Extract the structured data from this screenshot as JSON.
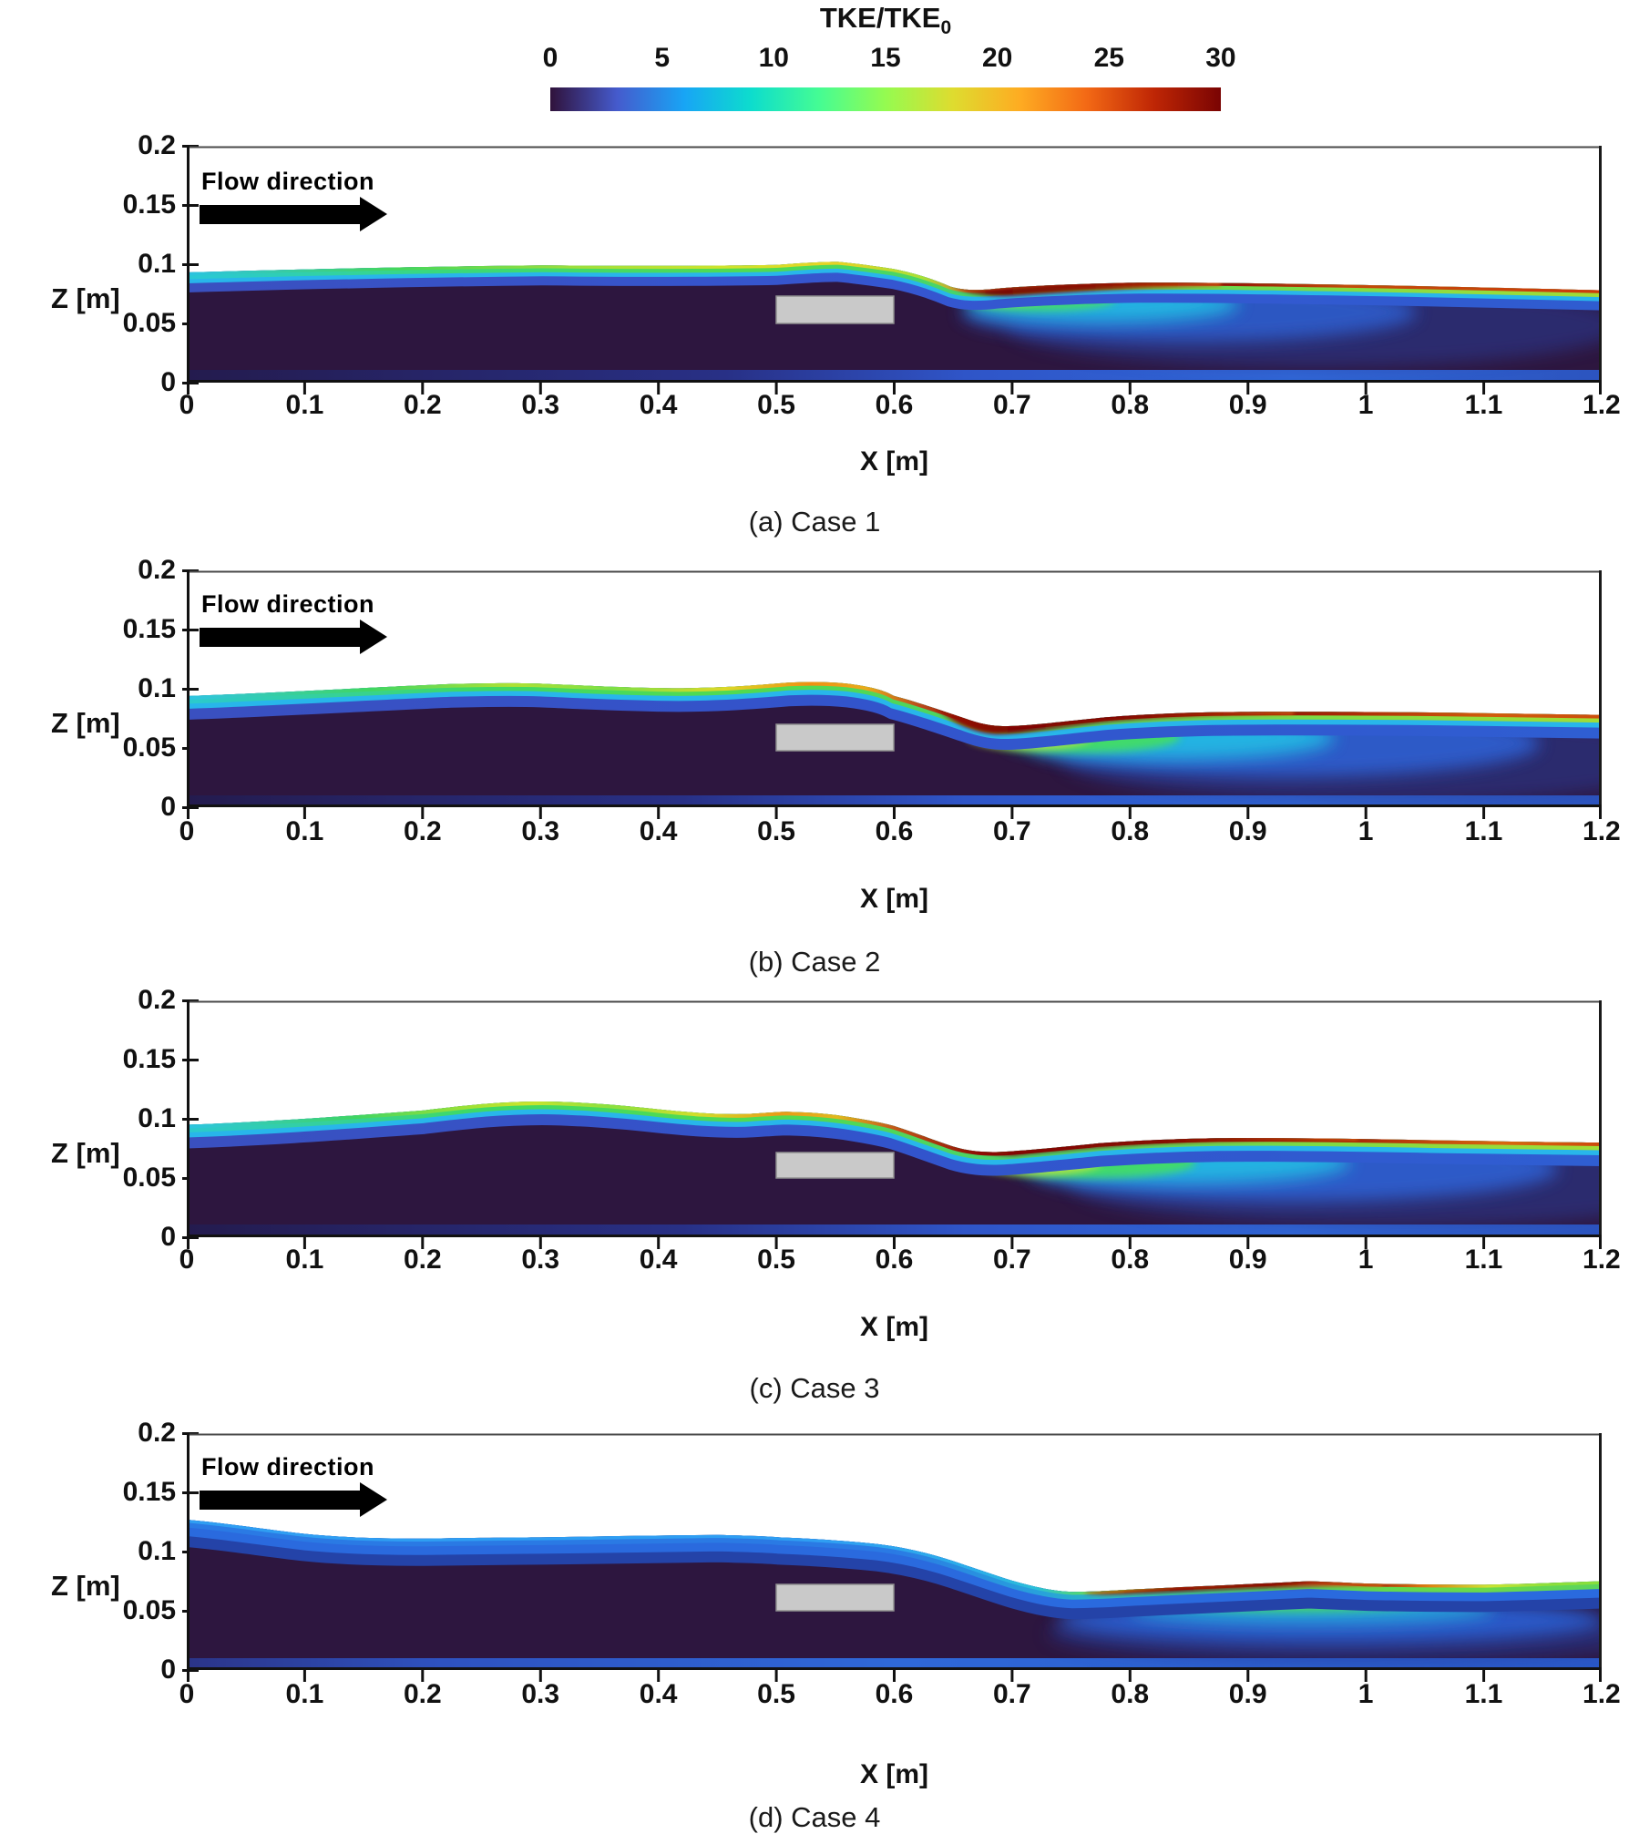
{
  "colorbar": {
    "title": "TKE/TKE",
    "title_sub": "0",
    "range": [
      0,
      30
    ],
    "ticks": [
      "0",
      "5",
      "10",
      "15",
      "20",
      "25",
      "30"
    ],
    "colormap_stops": [
      {
        "value": 0,
        "color": "#30123b"
      },
      {
        "value": 3,
        "color": "#455bcd"
      },
      {
        "value": 6,
        "color": "#18a5f5"
      },
      {
        "value": 9,
        "color": "#0dddcd"
      },
      {
        "value": 12,
        "color": "#44fc94"
      },
      {
        "value": 15,
        "color": "#95fb50"
      },
      {
        "value": 18,
        "color": "#dedc2f"
      },
      {
        "value": 21,
        "color": "#feac22"
      },
      {
        "value": 24,
        "color": "#f36915"
      },
      {
        "value": 27,
        "color": "#bf2605"
      },
      {
        "value": 30,
        "color": "#7a0403"
      }
    ]
  },
  "axes": {
    "xlabel": "X [m]",
    "zlabel": "Z [m]",
    "xticks": [
      "0",
      "0.1",
      "0.2",
      "0.3",
      "0.4",
      "0.5",
      "0.6",
      "0.7",
      "0.8",
      "0.9",
      "1",
      "1.1",
      "1.2"
    ],
    "zticks": [
      "0.2",
      "0.15",
      "0.1",
      "0.05",
      "0"
    ],
    "xlim": [
      0,
      1.2
    ],
    "zlim": [
      0,
      0.2
    ]
  },
  "panels": [
    {
      "caption": "(a) Case 1",
      "flow_label": "Flow direction",
      "has_flow_arrow": true
    },
    {
      "caption": "(b) Case 2",
      "flow_label": "Flow direction",
      "has_flow_arrow": true
    },
    {
      "caption": "(c) Case 3",
      "has_flow_arrow": false
    },
    {
      "caption": "(d) Case 4",
      "flow_label": "Flow direction",
      "has_flow_arrow": true
    }
  ],
  "obstacle_color": "#c9c9c9",
  "water_body_color": "#2d163f",
  "chart_data": [
    {
      "type": "heatmap",
      "panel": "a",
      "title": "(a) Case 1",
      "xlabel": "X [m]",
      "ylabel": "Z [m]",
      "xlim": [
        0,
        1.2
      ],
      "ylim": [
        0,
        0.2
      ],
      "colorbar_label": "TKE/TKE0",
      "colorbar_range": [
        0,
        30
      ],
      "obstacle": {
        "x": [
          0.5,
          0.6
        ],
        "z": [
          0.05,
          0.073
        ]
      },
      "flow_direction_label": true,
      "free_surface": {
        "x": [
          0,
          0.1,
          0.2,
          0.3,
          0.4,
          0.5,
          0.6,
          0.7,
          0.8,
          0.9,
          1.0,
          1.1,
          1.2
        ],
        "z": [
          0.093,
          0.095,
          0.098,
          0.099,
          0.098,
          0.1,
          0.096,
          0.082,
          0.085,
          0.083,
          0.082,
          0.08,
          0.078
        ]
      },
      "surface_dip": {
        "x": 0.66,
        "z": 0.078
      },
      "max_tke_surface_band_x": [
        0.65,
        0.87
      ]
    },
    {
      "type": "heatmap",
      "panel": "b",
      "title": "(b) Case 2",
      "xlabel": "X [m]",
      "ylabel": "Z [m]",
      "xlim": [
        0,
        1.2
      ],
      "ylim": [
        0,
        0.2
      ],
      "colorbar_label": "TKE/TKE0",
      "colorbar_range": [
        0,
        30
      ],
      "obstacle": {
        "x": [
          0.5,
          0.6
        ],
        "z": [
          0.048,
          0.07
        ]
      },
      "flow_direction_label": true,
      "free_surface": {
        "x": [
          0,
          0.1,
          0.2,
          0.3,
          0.4,
          0.5,
          0.6,
          0.7,
          0.8,
          0.9,
          1.0,
          1.1,
          1.2
        ],
        "z": [
          0.094,
          0.097,
          0.102,
          0.104,
          0.1,
          0.105,
          0.094,
          0.069,
          0.077,
          0.081,
          0.081,
          0.08,
          0.078
        ]
      },
      "surface_dip": {
        "x": 0.68,
        "z": 0.068
      },
      "max_tke_surface_band_x": [
        0.63,
        0.93
      ]
    },
    {
      "type": "heatmap",
      "panel": "c",
      "title": "(c) Case 3",
      "xlabel": "X [m]",
      "ylabel": "Z [m]",
      "xlim": [
        0,
        1.2
      ],
      "ylim": [
        0,
        0.2
      ],
      "colorbar_label": "TKE/TKE0",
      "colorbar_range": [
        0,
        30
      ],
      "obstacle": {
        "x": [
          0.5,
          0.6
        ],
        "z": [
          0.05,
          0.072
        ]
      },
      "flow_direction_label": false,
      "free_surface": {
        "x": [
          0,
          0.1,
          0.2,
          0.3,
          0.4,
          0.5,
          0.6,
          0.7,
          0.8,
          0.9,
          1.0,
          1.1,
          1.2
        ],
        "z": [
          0.095,
          0.098,
          0.107,
          0.114,
          0.108,
          0.106,
          0.094,
          0.073,
          0.082,
          0.084,
          0.082,
          0.081,
          0.08
        ]
      },
      "surface_dip": {
        "x": 0.68,
        "z": 0.072
      },
      "max_tke_surface_band_x": [
        0.64,
        0.98
      ]
    },
    {
      "type": "heatmap",
      "panel": "d",
      "title": "(d) Case 4",
      "xlabel": "X [m]",
      "ylabel": "Z [m]",
      "xlim": [
        0,
        1.2
      ],
      "ylim": [
        0,
        0.2
      ],
      "colorbar_label": "TKE/TKE0",
      "colorbar_range": [
        0,
        30
      ],
      "obstacle": {
        "x": [
          0.5,
          0.6
        ],
        "z": [
          0.05,
          0.072
        ]
      },
      "flow_direction_label": true,
      "free_surface": {
        "x": [
          0,
          0.1,
          0.2,
          0.3,
          0.4,
          0.5,
          0.6,
          0.7,
          0.8,
          0.9,
          1.0,
          1.1,
          1.2
        ],
        "z": [
          0.127,
          0.115,
          0.111,
          0.112,
          0.113,
          0.112,
          0.105,
          0.075,
          0.068,
          0.072,
          0.073,
          0.072,
          0.075
        ]
      },
      "surface_dip": {
        "x": 0.75,
        "z": 0.066
      },
      "max_tke_surface_band_x": [
        0.77,
        1.02
      ]
    }
  ]
}
